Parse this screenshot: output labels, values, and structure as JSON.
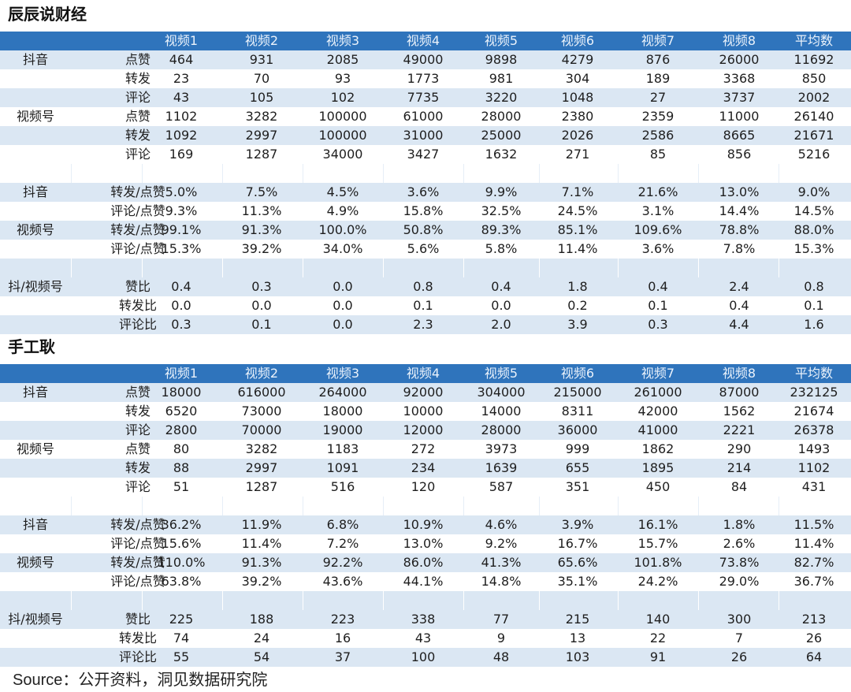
{
  "sections": [
    {
      "title": "辰辰说财经",
      "header": [
        "视频1",
        "视频2",
        "视频3",
        "视频4",
        "视频5",
        "视频6",
        "视频7",
        "视频8",
        "平均数"
      ],
      "blocks": [
        {
          "rows": [
            {
              "group": "抖音",
              "label": "点赞",
              "values": [
                "464",
                "931",
                "2085",
                "49000",
                "9898",
                "4279",
                "876",
                "26000",
                "11692"
              ]
            },
            {
              "group": "",
              "label": "转发",
              "values": [
                "23",
                "70",
                "93",
                "1773",
                "981",
                "304",
                "189",
                "3368",
                "850"
              ]
            },
            {
              "group": "",
              "label": "评论",
              "values": [
                "43",
                "105",
                "102",
                "7735",
                "3220",
                "1048",
                "27",
                "3737",
                "2002"
              ]
            },
            {
              "group": "视频号",
              "label": "点赞",
              "values": [
                "1102",
                "3282",
                "100000",
                "61000",
                "28000",
                "2380",
                "2359",
                "11000",
                "26140"
              ]
            },
            {
              "group": "",
              "label": "转发",
              "values": [
                "1092",
                "2997",
                "100000",
                "31000",
                "25000",
                "2026",
                "2586",
                "8665",
                "21671"
              ]
            },
            {
              "group": "",
              "label": "评论",
              "values": [
                "169",
                "1287",
                "34000",
                "3427",
                "1632",
                "271",
                "85",
                "856",
                "5216"
              ]
            }
          ]
        },
        {
          "rows": [
            {
              "group": "抖音",
              "label": "转发/点赞",
              "values": [
                "5.0%",
                "7.5%",
                "4.5%",
                "3.6%",
                "9.9%",
                "7.1%",
                "21.6%",
                "13.0%",
                "9.0%"
              ]
            },
            {
              "group": "",
              "label": "评论/点赞",
              "values": [
                "9.3%",
                "11.3%",
                "4.9%",
                "15.8%",
                "32.5%",
                "24.5%",
                "3.1%",
                "14.4%",
                "14.5%"
              ]
            },
            {
              "group": "视频号",
              "label": "转发/点赞",
              "values": [
                "99.1%",
                "91.3%",
                "100.0%",
                "50.8%",
                "89.3%",
                "85.1%",
                "109.6%",
                "78.8%",
                "88.0%"
              ]
            },
            {
              "group": "",
              "label": "评论/点赞",
              "values": [
                "15.3%",
                "39.2%",
                "34.0%",
                "5.6%",
                "5.8%",
                "11.4%",
                "3.6%",
                "7.8%",
                "15.3%"
              ]
            }
          ]
        },
        {
          "rows": [
            {
              "group": "抖/视频号",
              "label": "赞比",
              "values": [
                "0.4",
                "0.3",
                "0.0",
                "0.8",
                "0.4",
                "1.8",
                "0.4",
                "2.4",
                "0.8"
              ]
            },
            {
              "group": "",
              "label": "转发比",
              "values": [
                "0.0",
                "0.0",
                "0.0",
                "0.1",
                "0.0",
                "0.2",
                "0.1",
                "0.4",
                "0.1"
              ]
            },
            {
              "group": "",
              "label": "评论比",
              "values": [
                "0.3",
                "0.1",
                "0.0",
                "2.3",
                "2.0",
                "3.9",
                "0.3",
                "4.4",
                "1.6"
              ]
            }
          ]
        }
      ]
    },
    {
      "title": "手工耿",
      "header": [
        "视频1",
        "视频2",
        "视频3",
        "视频4",
        "视频5",
        "视频6",
        "视频7",
        "视频8",
        "平均数"
      ],
      "blocks": [
        {
          "rows": [
            {
              "group": "抖音",
              "label": "点赞",
              "values": [
                "18000",
                "616000",
                "264000",
                "92000",
                "304000",
                "215000",
                "261000",
                "87000",
                "232125"
              ]
            },
            {
              "group": "",
              "label": "转发",
              "values": [
                "6520",
                "73000",
                "18000",
                "10000",
                "14000",
                "8311",
                "42000",
                "1562",
                "21674"
              ]
            },
            {
              "group": "",
              "label": "评论",
              "values": [
                "2800",
                "70000",
                "19000",
                "12000",
                "28000",
                "36000",
                "41000",
                "2221",
                "26378"
              ]
            },
            {
              "group": "视频号",
              "label": "点赞",
              "values": [
                "80",
                "3282",
                "1183",
                "272",
                "3973",
                "999",
                "1862",
                "290",
                "1493"
              ]
            },
            {
              "group": "",
              "label": "转发",
              "values": [
                "88",
                "2997",
                "1091",
                "234",
                "1639",
                "655",
                "1895",
                "214",
                "1102"
              ]
            },
            {
              "group": "",
              "label": "评论",
              "values": [
                "51",
                "1287",
                "516",
                "120",
                "587",
                "351",
                "450",
                "84",
                "431"
              ]
            }
          ]
        },
        {
          "rows": [
            {
              "group": "抖音",
              "label": "转发/点赞",
              "values": [
                "36.2%",
                "11.9%",
                "6.8%",
                "10.9%",
                "4.6%",
                "3.9%",
                "16.1%",
                "1.8%",
                "11.5%"
              ]
            },
            {
              "group": "",
              "label": "评论/点赞",
              "values": [
                "15.6%",
                "11.4%",
                "7.2%",
                "13.0%",
                "9.2%",
                "16.7%",
                "15.7%",
                "2.6%",
                "11.4%"
              ]
            },
            {
              "group": "视频号",
              "label": "转发/点赞",
              "values": [
                "110.0%",
                "91.3%",
                "92.2%",
                "86.0%",
                "41.3%",
                "65.6%",
                "101.8%",
                "73.8%",
                "82.7%"
              ]
            },
            {
              "group": "",
              "label": "评论/点赞",
              "values": [
                "63.8%",
                "39.2%",
                "43.6%",
                "44.1%",
                "14.8%",
                "35.1%",
                "24.2%",
                "29.0%",
                "36.7%"
              ]
            }
          ]
        },
        {
          "rows": [
            {
              "group": "抖/视频号",
              "label": "赞比",
              "values": [
                "225",
                "188",
                "223",
                "338",
                "77",
                "215",
                "140",
                "300",
                "213"
              ]
            },
            {
              "group": "",
              "label": "转发比",
              "values": [
                "74",
                "24",
                "16",
                "43",
                "9",
                "13",
                "22",
                "7",
                "26"
              ]
            },
            {
              "group": "",
              "label": "评论比",
              "values": [
                "55",
                "54",
                "37",
                "100",
                "48",
                "103",
                "91",
                "26",
                "64"
              ]
            }
          ]
        }
      ]
    }
  ],
  "source": "Source：公开资料，洞见数据研究院",
  "colors": {
    "header_bg": "#2f74bc",
    "row_light": "#dbe7f3",
    "row_white": "#ffffff"
  }
}
